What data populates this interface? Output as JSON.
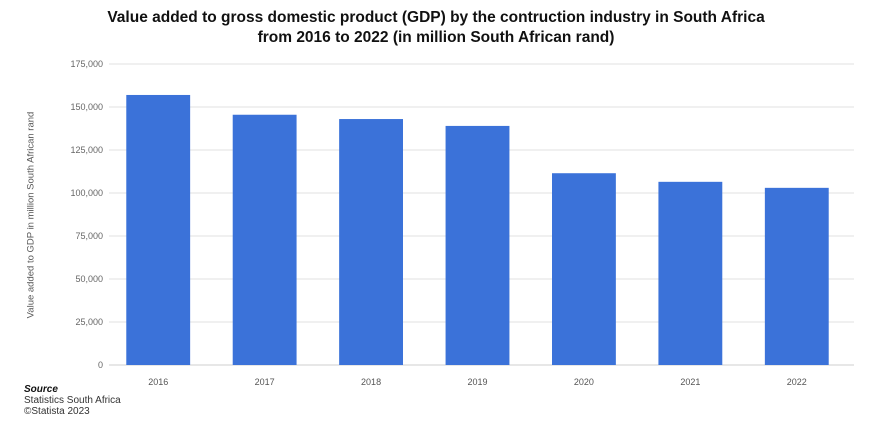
{
  "title_line1": "Value added to gross domestic product (GDP) by the contruction industry in South Africa",
  "title_line2": "from 2016 to 2022 (in million South African rand)",
  "source": {
    "heading": "Source",
    "line1": "Statistics South Africa",
    "line2": "©Statista 2023"
  },
  "chart_data": {
    "type": "bar",
    "categories": [
      "2016",
      "2017",
      "2018",
      "2019",
      "2020",
      "2021",
      "2022"
    ],
    "values": [
      157000,
      145500,
      143000,
      139000,
      111500,
      106500,
      103000
    ],
    "ylabel": "Value added to GDP in million South African rand",
    "xlabel": "",
    "ylim": [
      0,
      175000
    ],
    "yticks": [
      0,
      25000,
      50000,
      75000,
      100000,
      125000,
      150000,
      175000
    ],
    "ytick_labels": [
      "0",
      "25,000",
      "50,000",
      "75,000",
      "100,000",
      "125,000",
      "150,000",
      "175,000"
    ],
    "grid": true,
    "bar_color": "#3b72d9"
  }
}
